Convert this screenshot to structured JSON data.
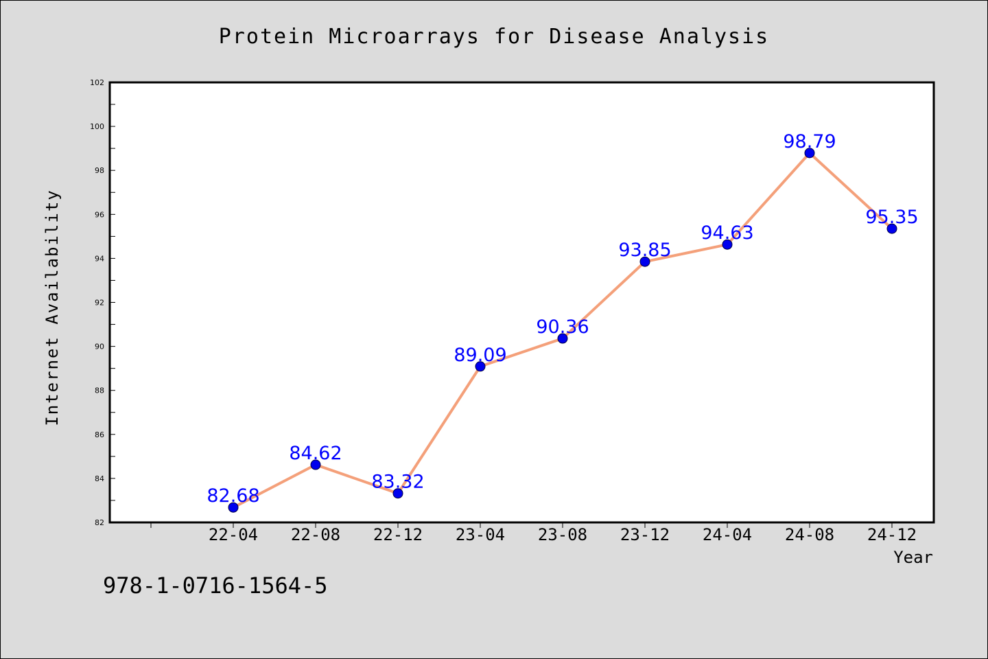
{
  "chart_data": {
    "type": "line",
    "title": "Protein Microarrays for Disease Analysis",
    "xlabel": "Year",
    "ylabel": "Internet Availability",
    "categories": [
      "22-04",
      "22-08",
      "22-12",
      "23-04",
      "23-08",
      "23-12",
      "24-04",
      "24-08",
      "24-12"
    ],
    "series": [
      {
        "values": [
          82.68,
          84.62,
          83.32,
          89.09,
          90.36,
          93.85,
          94.63,
          98.79,
          95.35
        ],
        "labels": [
          "82.68",
          "84.62",
          "83.32",
          "89.09",
          "90.36",
          "93.85",
          "94.63",
          "98.79",
          "95.35"
        ]
      }
    ],
    "ylim": [
      82,
      102
    ],
    "yticks": [
      "82",
      "84",
      "86",
      "88",
      "90",
      "92",
      "94",
      "96",
      "98",
      "100",
      "102"
    ],
    "grid": false,
    "legend": "none",
    "colors": {
      "line": "#f4a07a",
      "marker": "#0000ee",
      "labels": "#0000ff",
      "background": "#dcdcdc",
      "plot_area": "#ffffff"
    }
  },
  "annotation": "978-1-0716-1564-5"
}
